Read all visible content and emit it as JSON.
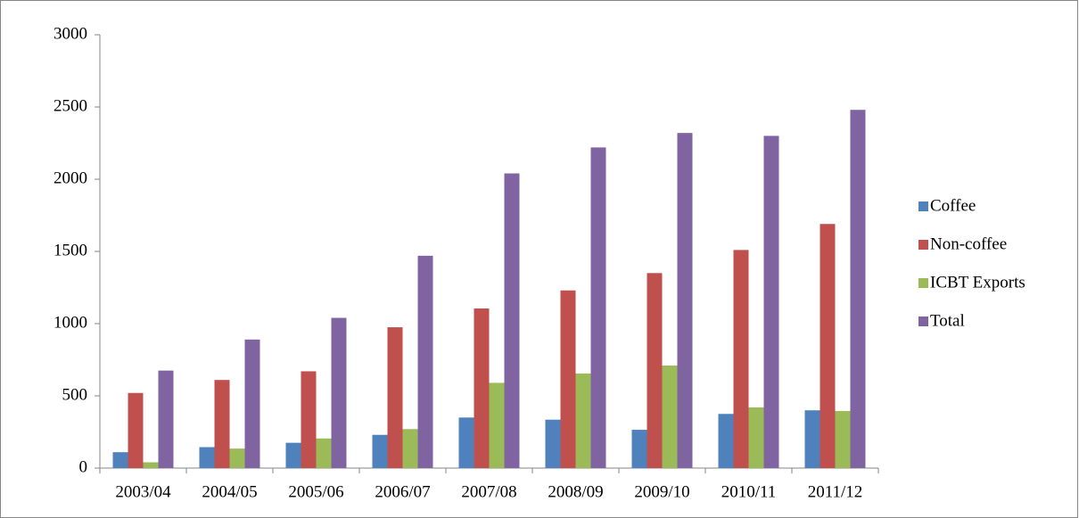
{
  "chart_data": {
    "type": "bar",
    "categories": [
      "2003/04",
      "2004/05",
      "2005/06",
      "2006/07",
      "2007/08",
      "2008/09",
      "2009/10",
      "2010/11",
      "2011/12"
    ],
    "series": [
      {
        "name": "Coffee",
        "color": "#4f81bd",
        "values": [
          110,
          145,
          175,
          230,
          350,
          335,
          265,
          375,
          400
        ]
      },
      {
        "name": "Non-coffee",
        "color": "#c0504d",
        "values": [
          520,
          610,
          670,
          975,
          1105,
          1230,
          1350,
          1510,
          1690
        ]
      },
      {
        "name": "ICBT Exports",
        "color": "#9bbb59",
        "values": [
          40,
          135,
          205,
          270,
          590,
          655,
          710,
          420,
          395
        ]
      },
      {
        "name": "Total",
        "color": "#8064a2",
        "values": [
          675,
          890,
          1040,
          1470,
          2040,
          2220,
          2320,
          2300,
          2480
        ]
      }
    ],
    "ylim": [
      0,
      3000
    ],
    "yticks": [
      0,
      500,
      1000,
      1500,
      2000,
      2500,
      3000
    ],
    "grid": false,
    "legend": "right"
  }
}
